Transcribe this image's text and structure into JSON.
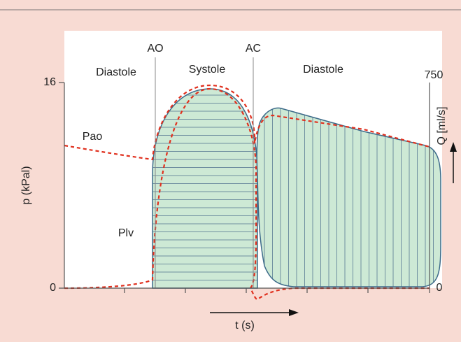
{
  "markers": {
    "opening": "AO",
    "closing": "AC"
  },
  "phases": [
    "Diastole",
    "Systole",
    "Diastole"
  ],
  "left_axis": {
    "label": "p (kPal)",
    "top_tick": "16",
    "bottom_tick": "0"
  },
  "right_axis": {
    "label": "Q [ml/s]",
    "top_tick": "750",
    "bottom_tick": "0"
  },
  "time_axis": {
    "label": "t (s)"
  },
  "curves": {
    "aortic": "Pao",
    "ventricular": "Plv"
  }
}
